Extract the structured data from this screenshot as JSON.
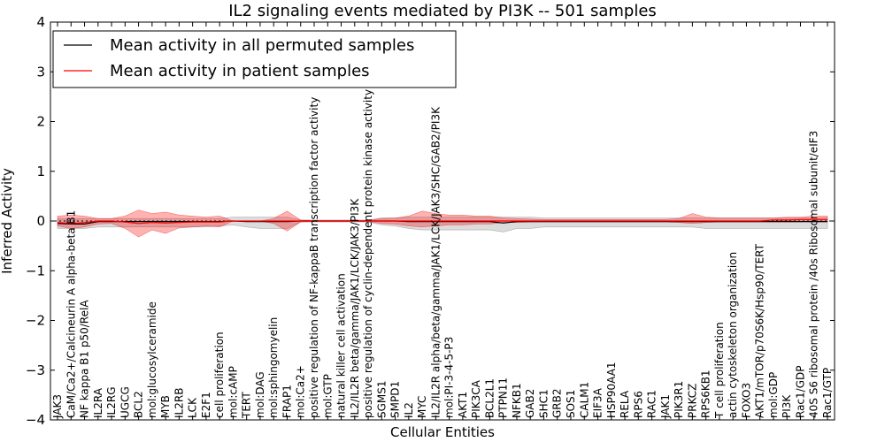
{
  "chart_data": {
    "type": "line",
    "title": "IL2 signaling events mediated by PI3K -- 501 samples",
    "xlabel": "Cellular Entities",
    "ylabel": "Inferred Activity",
    "ylim": [
      -4,
      4
    ],
    "yticks": [
      -4,
      -3,
      -2,
      -1,
      0,
      1,
      2,
      3,
      4
    ],
    "yticklabels": [
      "−4",
      "−3",
      "−2",
      "−1",
      "0",
      "1",
      "2",
      "3",
      "4"
    ],
    "legend_position": "top-left",
    "categories": [
      "JAK3",
      "CaM/Ca2+/Calcineurin A alpha-beta B1",
      "NF kappa B1 p50/RelA",
      "IL2RA",
      "IL2RG",
      "UGCG",
      "BCL2",
      "mol:glucosylceramide",
      "MYB",
      "IL2RB",
      "LCK",
      "E2F1",
      "cell proliferation",
      "mol:cAMP",
      "TERT",
      "mol:DAG",
      "mol:sphingomyelin",
      "FRAP1",
      "mol:Ca2+",
      "positive regulation of NF-kappaB transcription factor activity",
      "mol:GTP",
      "natural killer cell activation",
      "IL2/IL2R beta/gamma/JAK1/LCK/JAK3/PI3K",
      "positive regulation of cyclin-dependent protein kinase activity",
      "SGMS1",
      "SMPD1",
      "IL2",
      "MYC",
      "IL2/IL2R alpha/beta/gamma/JAK1/LCK/JAK3/SHC/GAB2/PI3K",
      "mol:PI-3-4-5-P3",
      "AKT1",
      "PIK3CA",
      "BCL2L1",
      "PTPN11",
      "NFKB1",
      "GAB2",
      "SHC1",
      "GRB2",
      "SOS1",
      "CALM1",
      "EIF3A",
      "HSP90AA1",
      "RELA",
      "RPS6",
      "RAC1",
      "JAK1",
      "PIK3R1",
      "PRKCZ",
      "RPS6KB1",
      "T cell proliferation",
      "actin cytoskeleton organization",
      "FOXO3",
      "AKT1/mTOR/p70S6K/Hsp90/TERT",
      "mol:GDP",
      "PI3K",
      "Rac1/GDP",
      "40S S6 ribosomal protein /40s Ribosomal subunit/eIF3",
      "Rac1/GTP"
    ],
    "series": [
      {
        "name": "Mean activity in all permuted samples",
        "color": "#000000",
        "values": [
          -0.05,
          -0.06,
          -0.06,
          -0.01,
          -0.01,
          -0.01,
          -0.01,
          -0.01,
          -0.01,
          -0.01,
          -0.01,
          -0.01,
          -0.01,
          0.0,
          -0.01,
          -0.01,
          -0.01,
          -0.01,
          0.0,
          0.0,
          0.0,
          0.0,
          0.0,
          0.0,
          0.0,
          0.0,
          -0.01,
          -0.01,
          -0.01,
          -0.01,
          -0.01,
          -0.01,
          -0.01,
          -0.04,
          -0.01,
          -0.01,
          -0.01,
          -0.01,
          -0.01,
          -0.01,
          -0.01,
          -0.01,
          -0.01,
          -0.01,
          -0.01,
          -0.01,
          -0.01,
          -0.01,
          -0.01,
          -0.01,
          -0.01,
          -0.01,
          -0.01,
          -0.01,
          -0.01,
          -0.01,
          -0.01,
          -0.01
        ],
        "band_upper": [
          0.05,
          0.05,
          0.05,
          0.05,
          0.05,
          0.05,
          0.05,
          0.05,
          0.05,
          0.05,
          0.05,
          0.05,
          0.05,
          0.08,
          0.08,
          0.08,
          0.08,
          0.08,
          0.02,
          0.02,
          0.02,
          0.02,
          0.02,
          0.02,
          0.06,
          0.06,
          0.08,
          0.08,
          0.08,
          0.08,
          0.08,
          0.08,
          0.08,
          0.08,
          0.08,
          0.08,
          0.06,
          0.06,
          0.06,
          0.06,
          0.06,
          0.06,
          0.06,
          0.06,
          0.06,
          0.06,
          0.06,
          0.06,
          0.06,
          0.06,
          0.06,
          0.06,
          0.06,
          0.06,
          0.06,
          0.06,
          0.06,
          0.06
        ],
        "band_lower": [
          -0.15,
          -0.15,
          -0.15,
          -0.12,
          -0.12,
          -0.12,
          -0.12,
          -0.12,
          -0.12,
          -0.12,
          -0.12,
          -0.12,
          -0.1,
          -0.08,
          -0.12,
          -0.15,
          -0.15,
          -0.15,
          -0.02,
          -0.02,
          -0.02,
          -0.02,
          -0.02,
          -0.02,
          -0.08,
          -0.1,
          -0.15,
          -0.18,
          -0.18,
          -0.18,
          -0.18,
          -0.18,
          -0.18,
          -0.22,
          -0.15,
          -0.15,
          -0.12,
          -0.12,
          -0.12,
          -0.12,
          -0.12,
          -0.12,
          -0.12,
          -0.12,
          -0.12,
          -0.12,
          -0.12,
          -0.12,
          -0.15,
          -0.15,
          -0.15,
          -0.15,
          -0.15,
          -0.15,
          -0.15,
          -0.15,
          -0.15,
          -0.15
        ]
      },
      {
        "name": "Mean activity in patient samples",
        "color": "#ff0000",
        "values": [
          -0.03,
          -0.05,
          -0.03,
          0.0,
          0.0,
          -0.02,
          -0.05,
          -0.03,
          -0.04,
          -0.03,
          -0.02,
          -0.02,
          -0.02,
          0.0,
          0.0,
          0.0,
          0.0,
          0.0,
          0.0,
          0.0,
          0.0,
          0.0,
          0.0,
          0.0,
          0.0,
          0.0,
          0.0,
          0.0,
          0.0,
          0.0,
          0.0,
          0.0,
          0.0,
          0.0,
          0.0,
          0.0,
          0.0,
          0.0,
          0.0,
          0.0,
          0.0,
          0.0,
          0.0,
          0.0,
          0.0,
          0.0,
          0.0,
          0.0,
          0.0,
          0.0,
          0.0,
          0.0,
          0.0,
          0.02,
          0.02,
          0.03,
          0.03,
          0.03
        ],
        "band_upper": [
          0.1,
          0.12,
          0.1,
          0.05,
          0.05,
          0.1,
          0.22,
          0.15,
          0.18,
          0.12,
          0.1,
          0.08,
          0.1,
          0.0,
          0.0,
          0.0,
          0.05,
          0.2,
          0.02,
          0.01,
          0.01,
          0.01,
          0.01,
          0.01,
          0.05,
          0.06,
          0.1,
          0.2,
          0.15,
          0.12,
          0.12,
          0.1,
          0.1,
          0.06,
          0.05,
          0.04,
          0.03,
          0.03,
          0.03,
          0.03,
          0.03,
          0.03,
          0.03,
          0.03,
          0.03,
          0.03,
          0.05,
          0.15,
          0.08,
          0.06,
          0.06,
          0.06,
          0.06,
          0.06,
          0.08,
          0.08,
          0.1,
          0.1
        ],
        "band_lower": [
          -0.1,
          -0.15,
          -0.12,
          -0.06,
          -0.05,
          -0.15,
          -0.32,
          -0.18,
          -0.25,
          -0.14,
          -0.12,
          -0.1,
          -0.12,
          0.0,
          0.0,
          0.0,
          -0.05,
          -0.2,
          -0.02,
          -0.01,
          -0.01,
          -0.01,
          -0.01,
          -0.01,
          -0.05,
          -0.06,
          -0.1,
          -0.12,
          -0.1,
          -0.08,
          -0.08,
          -0.06,
          -0.06,
          -0.03,
          -0.03,
          -0.02,
          -0.02,
          -0.02,
          -0.02,
          -0.02,
          -0.02,
          -0.02,
          -0.02,
          -0.02,
          -0.02,
          -0.02,
          -0.03,
          -0.05,
          -0.03,
          -0.02,
          -0.02,
          -0.02,
          -0.02,
          -0.02,
          -0.02,
          -0.02,
          -0.02,
          -0.02
        ]
      }
    ]
  }
}
